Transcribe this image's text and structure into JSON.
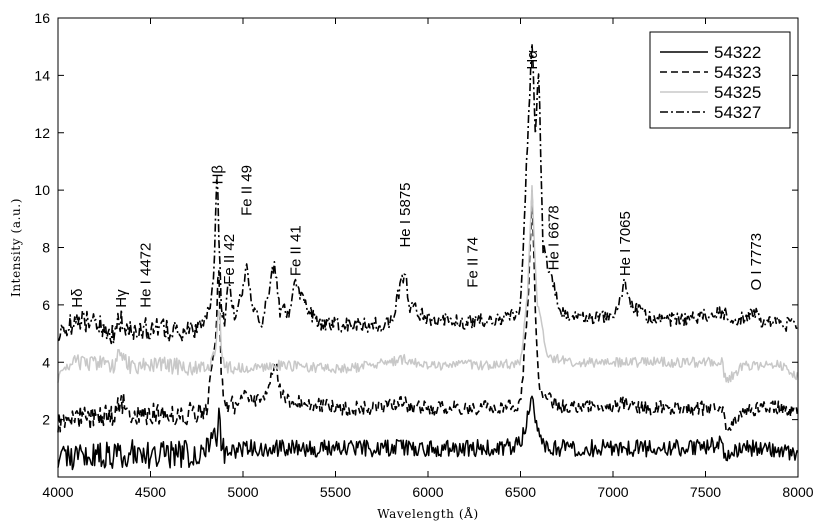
{
  "chart_data": {
    "type": "line",
    "title": "",
    "xlabel": "Wavelength (Å)",
    "ylabel": "Intensity (a.u.)",
    "xlim": [
      4000,
      8000
    ],
    "ylim": [
      0,
      16
    ],
    "xticks": [
      4000,
      4500,
      5000,
      5500,
      6000,
      6500,
      7000,
      7500,
      8000
    ],
    "yticks": [
      2,
      4,
      6,
      8,
      10,
      12,
      14,
      16
    ],
    "grid": false,
    "legend_position": "top-right",
    "series": [
      {
        "name": "54322",
        "color": "#000000",
        "dash": "solid",
        "baseline": 1.0,
        "noise": 0.3,
        "x": [
          4000,
          4100,
          4200,
          4300,
          4400,
          4500,
          4600,
          4700,
          4800,
          4860,
          4870,
          4880,
          4900,
          4950,
          5000,
          5100,
          5200,
          5300,
          5400,
          5500,
          5700,
          5900,
          6100,
          6300,
          6500,
          6540,
          6562,
          6600,
          6620,
          6700,
          6800,
          7000,
          7200,
          7400,
          7590,
          7600,
          7620,
          7700,
          7800,
          7900,
          8000
        ],
        "y": [
          0.8,
          0.7,
          0.8,
          0.7,
          0.9,
          0.7,
          0.8,
          0.8,
          1.0,
          1.5,
          2.8,
          1.2,
          0.9,
          0.9,
          1.0,
          1.0,
          1.0,
          1.0,
          1.0,
          1.0,
          1.0,
          1.0,
          1.0,
          1.0,
          1.1,
          2.2,
          2.8,
          1.5,
          1.2,
          1.0,
          1.0,
          1.0,
          1.0,
          1.0,
          1.2,
          0.4,
          0.9,
          1.0,
          1.0,
          1.0,
          0.8
        ]
      },
      {
        "name": "54323",
        "color": "#000000",
        "dash": "dashed",
        "baseline": 2.1,
        "noise": 0.25,
        "x": [
          4000,
          4100,
          4200,
          4300,
          4350,
          4400,
          4500,
          4600,
          4700,
          4800,
          4850,
          4870,
          4880,
          4900,
          4950,
          5000,
          5100,
          5180,
          5200,
          5250,
          5300,
          5400,
          5500,
          5700,
          5875,
          5900,
          6100,
          6300,
          6500,
          6540,
          6562,
          6580,
          6600,
          6700,
          6800,
          7000,
          7065,
          7200,
          7400,
          7590,
          7610,
          7700,
          7800,
          7900,
          8000
        ],
        "y": [
          1.9,
          2.1,
          2.0,
          2.2,
          2.6,
          2.1,
          2.2,
          2.2,
          2.2,
          2.3,
          4.5,
          7.5,
          3.5,
          2.5,
          2.4,
          2.8,
          2.6,
          4.0,
          3.0,
          2.6,
          2.7,
          2.5,
          2.4,
          2.4,
          2.6,
          2.4,
          2.4,
          2.4,
          2.5,
          6.0,
          10.0,
          6.0,
          3.0,
          2.5,
          2.4,
          2.4,
          2.6,
          2.4,
          2.4,
          2.4,
          1.6,
          2.3,
          2.4,
          2.4,
          2.3
        ]
      },
      {
        "name": "54325",
        "color": "#c8c8c8",
        "dash": "solid",
        "baseline": 3.9,
        "noise": 0.18,
        "x": [
          4000,
          4100,
          4200,
          4300,
          4340,
          4400,
          4500,
          4600,
          4700,
          4800,
          4850,
          4870,
          4890,
          4950,
          5000,
          5100,
          5200,
          5400,
          5600,
          5875,
          6000,
          6200,
          6400,
          6500,
          6540,
          6562,
          6590,
          6650,
          6800,
          7000,
          7200,
          7400,
          7590,
          7610,
          7700,
          7900,
          8000
        ],
        "y": [
          3.5,
          4.0,
          4.0,
          3.8,
          4.4,
          3.8,
          3.9,
          3.9,
          3.8,
          3.8,
          4.2,
          6.0,
          3.9,
          3.8,
          3.8,
          3.8,
          3.9,
          3.8,
          3.8,
          4.1,
          3.9,
          3.9,
          3.9,
          4.0,
          6.5,
          10.2,
          6.0,
          4.2,
          4.0,
          4.0,
          4.0,
          4.0,
          4.0,
          3.3,
          3.9,
          3.9,
          3.5
        ]
      },
      {
        "name": "54327",
        "color": "#000000",
        "dash": "dashdot",
        "baseline": 5.0,
        "noise": 0.25,
        "x": [
          4000,
          4050,
          4100,
          4200,
          4300,
          4340,
          4400,
          4500,
          4600,
          4700,
          4800,
          4840,
          4861,
          4880,
          4900,
          4923,
          4950,
          5000,
          5018,
          5050,
          5100,
          5169,
          5200,
          5250,
          5284,
          5300,
          5316,
          5400,
          5500,
          5700,
          5800,
          5875,
          5900,
          6000,
          6200,
          6400,
          6500,
          6540,
          6562,
          6580,
          6600,
          6620,
          6680,
          6700,
          6750,
          6900,
          7000,
          7065,
          7100,
          7200,
          7400,
          7600,
          7700,
          7773,
          7800,
          7900,
          8000
        ],
        "y": [
          5.0,
          5.2,
          5.5,
          5.3,
          5.0,
          5.5,
          5.1,
          5.2,
          5.1,
          5.1,
          5.3,
          6.5,
          10.8,
          6.0,
          5.6,
          6.5,
          5.6,
          6.5,
          7.5,
          6.0,
          5.2,
          7.4,
          5.8,
          5.8,
          6.8,
          6.4,
          6.2,
          5.4,
          5.3,
          5.3,
          5.4,
          7.2,
          6.0,
          5.5,
          5.4,
          5.5,
          5.8,
          12.0,
          15.2,
          12.0,
          14.5,
          8.0,
          6.8,
          6.0,
          5.6,
          5.5,
          5.6,
          6.8,
          6.0,
          5.5,
          5.5,
          5.7,
          5.5,
          5.8,
          5.4,
          5.4,
          5.2
        ]
      }
    ],
    "annotations": [
      {
        "text": "Hδ",
        "x": 4102,
        "y": 5.9
      },
      {
        "text": "Hγ",
        "x": 4340,
        "y": 5.9
      },
      {
        "text": "He I 4472",
        "x": 4472,
        "y": 5.9
      },
      {
        "text": "Hβ",
        "x": 4861,
        "y": 10.2
      },
      {
        "text": "Fe II 42",
        "x": 4924,
        "y": 6.7
      },
      {
        "text": "Fe II 49",
        "x": 5018,
        "y": 9.1
      },
      {
        "text": "Fe II 41",
        "x": 5284,
        "y": 7.0
      },
      {
        "text": "He I 5875",
        "x": 5875,
        "y": 8.0
      },
      {
        "text": "Fe II 74",
        "x": 6240,
        "y": 6.6
      },
      {
        "text": "Hα",
        "x": 6562,
        "y": 14.2
      },
      {
        "text": "He I 6678",
        "x": 6678,
        "y": 7.2
      },
      {
        "text": "He I 7065",
        "x": 7065,
        "y": 7.0
      },
      {
        "text": "O I 7773",
        "x": 7773,
        "y": 6.5
      }
    ]
  }
}
